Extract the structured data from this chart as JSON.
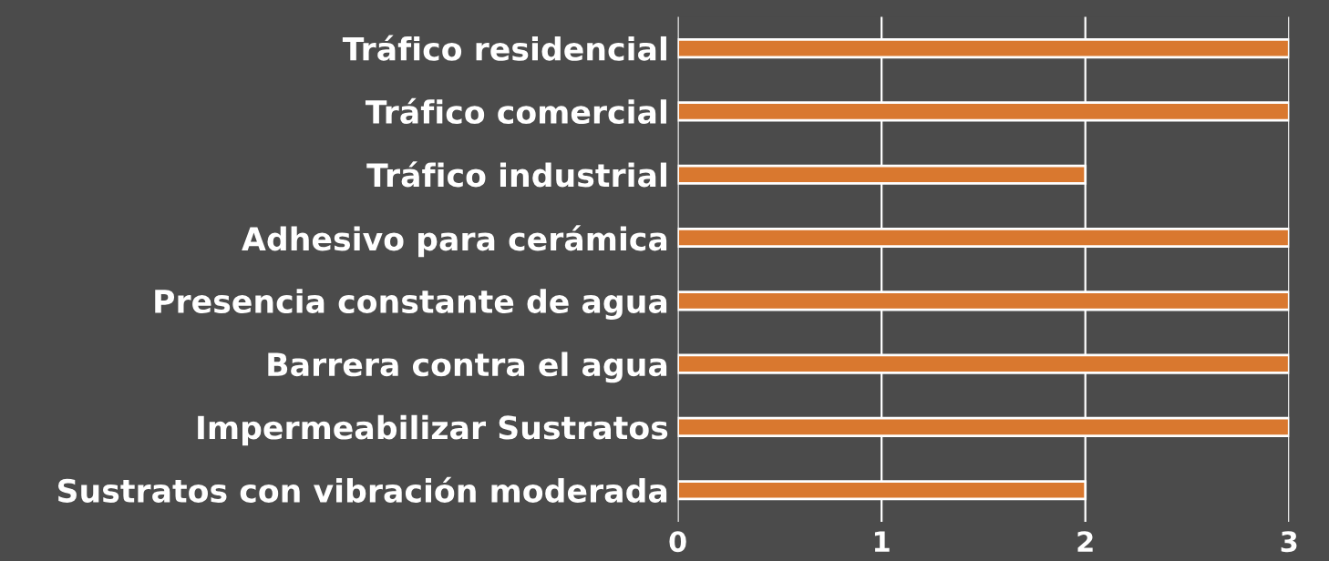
{
  "chart_data": {
    "type": "bar",
    "orientation": "horizontal",
    "categories": [
      "Tráfico residencial",
      "Tráfico comercial",
      "Tráfico industrial",
      "Adhesivo para cerámica",
      "Presencia constante de agua",
      "Barrera contra el agua",
      "Impermeabilizar Sustratos",
      "Sustratos con vibración moderada"
    ],
    "values": [
      3,
      3,
      2,
      3,
      3,
      3,
      3,
      2
    ],
    "color": "#d9782f",
    "xlim": [
      0,
      3
    ],
    "xticks": [
      0,
      1,
      2,
      3
    ],
    "grid": "x"
  }
}
